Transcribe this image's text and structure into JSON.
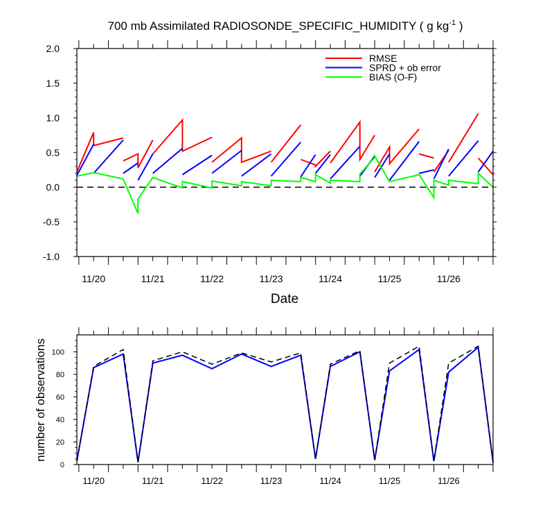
{
  "title": {
    "main": "700 mb Assimilated RADIOSONDE_SPECIFIC_HUMIDITY ( g kg",
    "sup": "-1",
    "close": " )"
  },
  "dates": [
    "11/20",
    "11/21",
    "11/22",
    "11/23",
    "11/24",
    "11/25",
    "11/26"
  ],
  "chart_data": [
    {
      "type": "line",
      "title": "700 mb Assimilated RADIOSONDE_SPECIFIC_HUMIDITY ( g kg-1 )",
      "xlabel": "Date",
      "ylabel": "",
      "xlim": [
        -0.0333,
        7.0
      ],
      "ylim": [
        -1.0,
        2.0
      ],
      "yticks": [
        -1.0,
        -0.5,
        0.0,
        0.5,
        1.0,
        1.5,
        2.0
      ],
      "ytick_labels": [
        "-1.0",
        "-0.5",
        "0.0",
        "0.5",
        "1.0",
        "1.5",
        "2.0"
      ],
      "legend_position": "top-right",
      "grid": false,
      "reference_line": 0,
      "series": [
        {
          "name": "RMSE",
          "color": "#ff0000",
          "segments": [
            [
              [
                -0.0333,
                0.22
              ],
              [
                0.25,
                0.79
              ],
              [
                0.25,
                0.6
              ],
              [
                0.75,
                0.71
              ]
            ],
            [
              [
                0.75,
                0.38
              ],
              [
                1.0,
                0.48
              ],
              [
                1.0,
                0.28
              ],
              [
                1.25,
                0.68
              ]
            ],
            [
              [
                1.25,
                0.48
              ],
              [
                1.75,
                0.97
              ],
              [
                1.75,
                0.52
              ],
              [
                2.25,
                0.72
              ]
            ],
            [
              [
                2.25,
                0.36
              ],
              [
                2.75,
                0.71
              ],
              [
                2.75,
                0.36
              ],
              [
                3.25,
                0.52
              ]
            ],
            [
              [
                3.25,
                0.36
              ],
              [
                3.75,
                0.9
              ]
            ],
            [
              [
                3.75,
                0.4
              ],
              [
                4.0,
                0.32
              ],
              [
                4.0,
                0.3
              ],
              [
                4.25,
                0.52
              ]
            ],
            [
              [
                4.25,
                0.35
              ],
              [
                4.75,
                0.94
              ],
              [
                4.75,
                0.4
              ],
              [
                5.0,
                0.75
              ]
            ],
            [
              [
                5.0,
                0.22
              ],
              [
                5.25,
                0.58
              ],
              [
                5.25,
                0.34
              ],
              [
                5.75,
                0.84
              ]
            ],
            [
              [
                5.75,
                0.48
              ],
              [
                6.0,
                0.42
              ]
            ],
            [
              [
                6.0,
                0.22
              ],
              [
                6.25,
                0.53
              ]
            ],
            [
              [
                6.25,
                0.36
              ],
              [
                6.75,
                1.06
              ]
            ],
            [
              [
                6.75,
                0.42
              ],
              [
                7.0,
                0.18
              ]
            ]
          ]
        },
        {
          "name": "SPRD + ob error",
          "color": "#0000ff",
          "segments": [
            [
              [
                -0.0333,
                0.17
              ],
              [
                0.25,
                0.62
              ]
            ],
            [
              [
                0.25,
                0.2
              ],
              [
                0.75,
                0.68
              ]
            ],
            [
              [
                0.75,
                0.2
              ],
              [
                1.0,
                0.35
              ]
            ],
            [
              [
                1.0,
                0.1
              ],
              [
                1.25,
                0.48
              ]
            ],
            [
              [
                1.25,
                0.2
              ],
              [
                1.75,
                0.56
              ]
            ],
            [
              [
                1.75,
                0.18
              ],
              [
                2.25,
                0.46
              ]
            ],
            [
              [
                2.25,
                0.2
              ],
              [
                2.75,
                0.53
              ]
            ],
            [
              [
                2.75,
                0.16
              ],
              [
                3.25,
                0.48
              ]
            ],
            [
              [
                3.25,
                0.16
              ],
              [
                3.75,
                0.65
              ]
            ],
            [
              [
                3.75,
                0.15
              ],
              [
                4.0,
                0.47
              ]
            ],
            [
              [
                4.0,
                0.2
              ],
              [
                4.25,
                0.47
              ]
            ],
            [
              [
                4.25,
                0.12
              ],
              [
                4.75,
                0.59
              ]
            ],
            [
              [
                4.75,
                0.16
              ],
              [
                5.0,
                0.45
              ]
            ],
            [
              [
                5.0,
                0.14
              ],
              [
                5.25,
                0.48
              ]
            ],
            [
              [
                5.25,
                0.1
              ],
              [
                5.75,
                0.66
              ]
            ],
            [
              [
                5.75,
                0.2
              ],
              [
                6.0,
                0.25
              ]
            ],
            [
              [
                6.0,
                0.12
              ],
              [
                6.25,
                0.55
              ]
            ],
            [
              [
                6.25,
                0.16
              ],
              [
                6.75,
                0.67
              ]
            ],
            [
              [
                6.75,
                0.22
              ],
              [
                7.0,
                0.52
              ]
            ]
          ]
        },
        {
          "name": "BIAS (O-F)",
          "color": "#00ff00",
          "segments": [
            [
              [
                -0.0333,
                0.16
              ],
              [
                0.25,
                0.21
              ],
              [
                0.75,
                0.12
              ],
              [
                1.0,
                -0.38
              ],
              [
                1.0,
                -0.17
              ],
              [
                1.25,
                0.14
              ],
              [
                1.75,
                -0.01
              ],
              [
                1.75,
                0.08
              ],
              [
                2.25,
                -0.01
              ],
              [
                2.25,
                0.09
              ],
              [
                2.75,
                0.02
              ],
              [
                2.75,
                0.08
              ],
              [
                3.25,
                0.02
              ],
              [
                3.25,
                0.1
              ],
              [
                3.75,
                0.08
              ],
              [
                3.75,
                0.14
              ],
              [
                4.0,
                0.08
              ],
              [
                4.0,
                0.18
              ],
              [
                4.25,
                0.06
              ],
              [
                4.25,
                0.1
              ],
              [
                4.75,
                0.08
              ],
              [
                4.75,
                0.19
              ],
              [
                5.0,
                0.43
              ],
              [
                5.0,
                0.45
              ],
              [
                5.25,
                0.08
              ],
              [
                5.75,
                0.18
              ],
              [
                6.0,
                -0.15
              ],
              [
                6.0,
                0.1
              ],
              [
                6.25,
                0.03
              ],
              [
                6.25,
                0.1
              ],
              [
                6.75,
                0.05
              ],
              [
                6.75,
                0.2
              ],
              [
                7.0,
                0.0
              ]
            ]
          ]
        }
      ]
    },
    {
      "type": "line",
      "xlabel": "",
      "ylabel": "number of observations",
      "xlim": [
        -0.0333,
        7.0
      ],
      "ylim": [
        0,
        115
      ],
      "yticks": [
        0,
        20,
        40,
        60,
        80,
        100
      ],
      "ytick_labels": [
        "0",
        "20",
        "40",
        "60",
        "80",
        "100"
      ],
      "grid": false,
      "series": [
        {
          "color": "#0000ff",
          "style": "solid",
          "x": [
            -0.0333,
            0.25,
            0.75,
            1.0,
            1.25,
            1.75,
            2.25,
            2.75,
            3.25,
            3.75,
            4.0,
            4.25,
            4.75,
            5.0,
            5.25,
            5.75,
            6.0,
            6.25,
            6.75,
            7.0
          ],
          "y": [
            3,
            86,
            98,
            2,
            90,
            97,
            85,
            98,
            87,
            97,
            5,
            87,
            100,
            4,
            83,
            102,
            3,
            82,
            104,
            2
          ]
        },
        {
          "color": "#000000",
          "style": "dashed",
          "x": [
            -0.0333,
            0.25,
            0.75,
            1.0,
            1.25,
            1.75,
            2.25,
            2.75,
            3.25,
            3.75,
            4.0,
            4.25,
            4.75,
            5.0,
            5.25,
            5.75,
            6.0,
            6.25,
            6.75,
            7.0
          ],
          "y": [
            3,
            87,
            102,
            2,
            92,
            100,
            89,
            99,
            91,
            99,
            5,
            89,
            101,
            4,
            90,
            105,
            3,
            90,
            105,
            2
          ]
        }
      ]
    }
  ]
}
